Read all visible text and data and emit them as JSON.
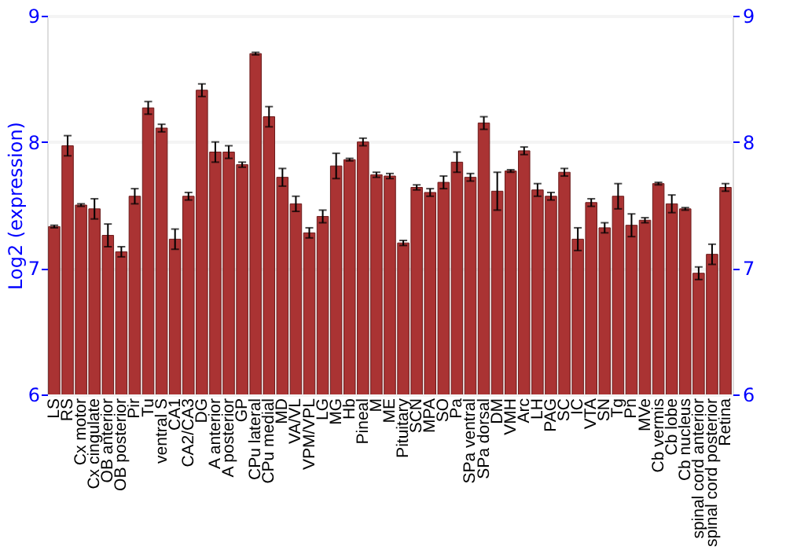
{
  "chart_data": {
    "type": "bar",
    "ylabel": "Log2 (expression)",
    "categories": [
      "LS",
      "RS",
      "Cx motor",
      "Cx cingulate",
      "OB anterior",
      "OB posterior",
      "Pir",
      "Tu",
      "ventral S",
      "CA1",
      "CA2/CA3",
      "DG",
      "A anterior",
      "A posterior",
      "GP",
      "CPu lateral",
      "CPu medial",
      "MD",
      "VA/VL",
      "VPM/VPL",
      "LG",
      "MG",
      "Hb",
      "Pineal",
      "M",
      "ME",
      "Pituitary",
      "SCN",
      "MPA",
      "SO",
      "Pa",
      "SPa ventral",
      "SPa dorsal",
      "DM",
      "VMH",
      "Arc",
      "LH",
      "PAG",
      "SC",
      "IC",
      "VTA",
      "SN",
      "Tg",
      "Pn",
      "MVe",
      "Cb vermis",
      "Cb lobe",
      "Cb nucleus",
      "spinal cord anterior",
      "spinal cord posterior",
      "Retina"
    ],
    "values": [
      7.33,
      7.97,
      7.5,
      7.47,
      7.26,
      7.13,
      7.57,
      8.27,
      8.11,
      7.23,
      7.57,
      8.41,
      7.92,
      7.92,
      7.82,
      8.7,
      8.2,
      7.72,
      7.51,
      7.28,
      7.41,
      7.81,
      7.86,
      8.0,
      7.74,
      7.73,
      7.2,
      7.64,
      7.6,
      7.68,
      7.84,
      7.72,
      8.15,
      7.61,
      7.77,
      7.93,
      7.62,
      7.57,
      7.76,
      7.23,
      7.52,
      7.32,
      7.57,
      7.34,
      7.38,
      7.67,
      7.51,
      7.47,
      6.96,
      7.11,
      7.64
    ],
    "errors": [
      0.01,
      0.08,
      0.01,
      0.08,
      0.09,
      0.04,
      0.06,
      0.05,
      0.03,
      0.08,
      0.03,
      0.05,
      0.08,
      0.05,
      0.02,
      0.01,
      0.08,
      0.07,
      0.06,
      0.04,
      0.05,
      0.1,
      0.01,
      0.03,
      0.02,
      0.02,
      0.02,
      0.02,
      0.03,
      0.05,
      0.08,
      0.03,
      0.05,
      0.15,
      0.01,
      0.03,
      0.05,
      0.03,
      0.03,
      0.09,
      0.03,
      0.04,
      0.1,
      0.09,
      0.02,
      0.01,
      0.07,
      0.01,
      0.05,
      0.08,
      0.03
    ],
    "color": "#aa3333",
    "ylim": [
      6,
      9
    ],
    "yticks": [
      6,
      7,
      8,
      9
    ],
    "y2lim": [
      6,
      9
    ],
    "y2ticks": [
      6,
      7,
      8,
      9
    ],
    "grid": "y"
  }
}
